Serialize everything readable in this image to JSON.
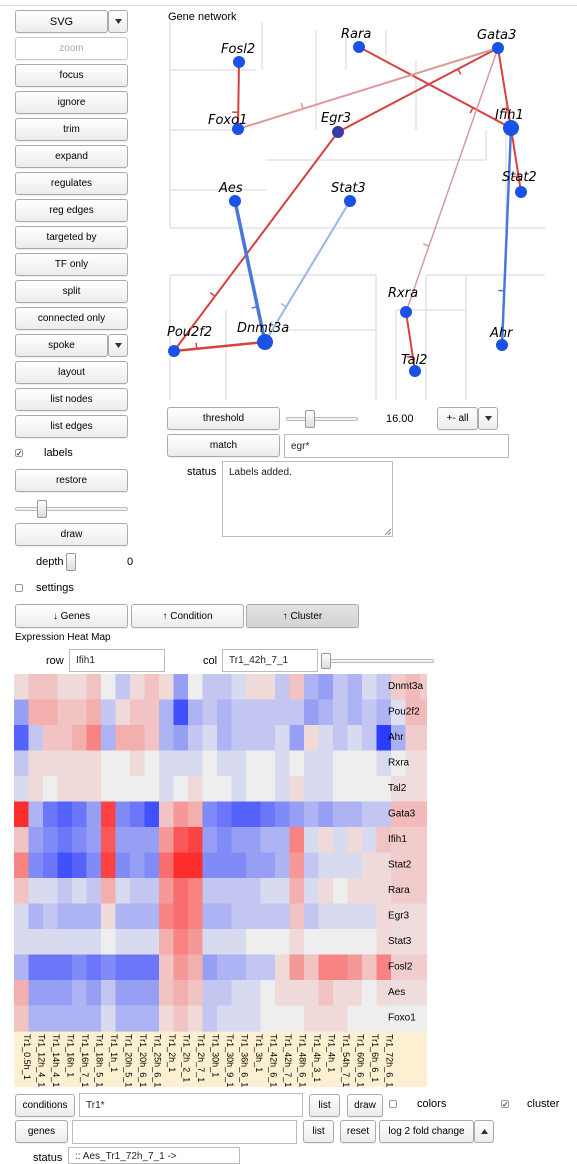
{
  "toolbar": {
    "svg_label": "SVG",
    "buttons": [
      "zoom",
      "focus",
      "ignore",
      "trim",
      "expand",
      "regulates",
      "reg edges",
      "targeted by",
      "TF only",
      "split",
      "connected only"
    ],
    "spoke_label": "spoke",
    "buttons2": [
      "layout",
      "list nodes",
      "list edges"
    ],
    "labels_checkbox": "labels",
    "restore_label": "restore",
    "draw_label": "draw",
    "depth_label": "depth",
    "depth_value": "0",
    "settings_label": "settings"
  },
  "network": {
    "title": "Gene network",
    "nodes": [
      "Fosl2",
      "Rara",
      "Gata3",
      "Foxo1",
      "Egr3",
      "Ifih1",
      "Aes",
      "Stat3",
      "Stat2",
      "Rxra",
      "Pou2f2",
      "Dnmt3a",
      "Ahr",
      "Tal2"
    ],
    "colors": {
      "node": "#1a52e8",
      "node_dark": "#3a3aa8",
      "edge_red": "#d94040",
      "edge_pink": "#d99a9a",
      "edge_blue": "#4a78d8",
      "edge_lightblue": "#9ab4e6"
    }
  },
  "controls": {
    "threshold_label": "threshold",
    "threshold_value": "16.00",
    "all_label": "+- all",
    "match_label": "match",
    "match_value": "egr*",
    "status_label": "status",
    "status_text": "Labels added."
  },
  "tabs": {
    "genes": "Genes",
    "condition": "Condition",
    "cluster": "Cluster"
  },
  "heatmap": {
    "title": "Expression Heat Map",
    "row_label": "row",
    "row_value": "Ifih1",
    "col_label": "col",
    "col_value": "Tr1_42h_7_1",
    "rows": [
      "Dnmt3a",
      "Pou2f2",
      "Ahr",
      "Rxra",
      "Tal2",
      "Gata3",
      "Ifih1",
      "Stat2",
      "Rara",
      "Egr3",
      "Stat3",
      "Fosl2",
      "Aes",
      "Foxo1"
    ],
    "cols": [
      "Tr1_0.5h_1",
      "Tr1_12h_4_1",
      "Tr1_14h_4_1",
      "Tr1_16h_1",
      "Tr1_16h_7_1",
      "Tr1_18h_5_1",
      "Tr1_1h_1",
      "Tr1_20h_5_1",
      "Tr1_20h_6_1",
      "Tr1_25h_6_1",
      "Tr1_2h_1",
      "Tr1_2h_2_1",
      "Tr1_2h_7_1",
      "Tr1_30h_1",
      "Tr1_30h_9_1",
      "Tr1_36h_6_1",
      "Tr1_3h_1",
      "Tr1_42h_6_1",
      "Tr1_42h_7_1",
      "Tr1_48h_6_1",
      "Tr1_4h_3_1",
      "Tr1_4h_1",
      "Tr1_54h_7_1",
      "Tr1_60h_6_1",
      "Tr1_6h_6_1",
      "Tr1_72h_6_1",
      "Tr1_72h_7_1",
      "Tr1_8h_3_1",
      "Tr1_8h_8_1"
    ]
  },
  "bottom": {
    "conditions_label": "conditions",
    "conditions_value": "Tr1*",
    "list_label": "list",
    "draw_label": "draw",
    "colors_label": "colors",
    "cluster_label": "cluster",
    "genes_label": "genes",
    "genes_value": "",
    "list2_label": "list",
    "reset_label": "reset",
    "fold_label": "log 2 fold change",
    "status_label": "status",
    "status_value": ":: Aes_Tr1_72h_7_1 ->"
  }
}
